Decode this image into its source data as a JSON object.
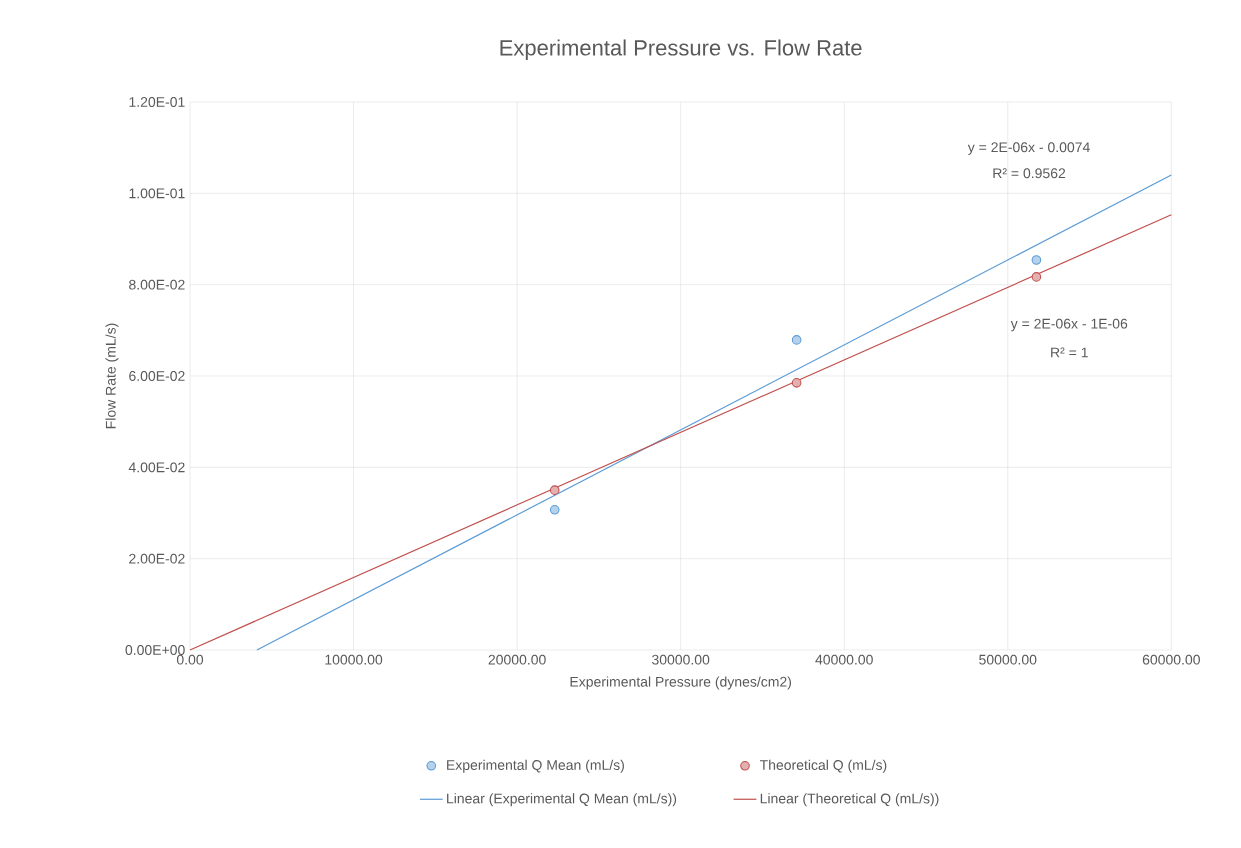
{
  "chart_data": {
    "type": "scatter",
    "title": "Experimental  Pressure vs. Flow Rate",
    "xlabel": "Experimental Pressure (dynes/cm2)",
    "ylabel": "Flow Rate (mL/s)",
    "xlim": [
      0,
      60000
    ],
    "ylim": [
      0,
      0.12
    ],
    "xticks": [
      {
        "value": 0,
        "label": "0.00"
      },
      {
        "value": 10000,
        "label": "10000.00"
      },
      {
        "value": 20000,
        "label": "20000.00"
      },
      {
        "value": 30000,
        "label": "30000.00"
      },
      {
        "value": 40000,
        "label": "40000.00"
      },
      {
        "value": 50000,
        "label": "50000.00"
      },
      {
        "value": 60000,
        "label": "60000.00"
      }
    ],
    "yticks": [
      {
        "value": 0,
        "label": "0.00E+00"
      },
      {
        "value": 0.02,
        "label": "2.00E-02"
      },
      {
        "value": 0.04,
        "label": "4.00E-02"
      },
      {
        "value": 0.06,
        "label": "6.00E-02"
      },
      {
        "value": 0.08,
        "label": "8.00E-02"
      },
      {
        "value": 0.1,
        "label": "1.00E-01"
      },
      {
        "value": 0.12,
        "label": "1.20E-01"
      }
    ],
    "grid": true,
    "legend": "bottom",
    "series": [
      {
        "name": "Experimental Q Mean (mL/s)",
        "marker": "circle",
        "color": "#5b9bd5",
        "x": [
          22300,
          37090,
          51750
        ],
        "values": [
          0.0307,
          0.0679,
          0.0854
        ]
      },
      {
        "name": "Theoretical Q (mL/s)",
        "marker": "circle",
        "color": "#c0504d",
        "x": [
          22300,
          37090,
          51750
        ],
        "values": [
          0.035,
          0.0585,
          0.0817
        ]
      },
      {
        "name": "Linear (Experimental Q Mean (mL/s))",
        "type": "line",
        "color": "#5b9bd5",
        "x": [
          4090,
          60000
        ],
        "values": [
          0,
          0.104
        ]
      },
      {
        "name": "Linear (Theoretical Q (mL/s))",
        "type": "line",
        "color": "#c0504d",
        "x": [
          0,
          60000
        ],
        "values": [
          0,
          0.0953
        ]
      }
    ],
    "annotations": [
      "y = 2E-06x - 0.0074",
      "R² = 0.9562",
      "y = 2E-06x - 1E-06",
      "R² = 1"
    ]
  }
}
